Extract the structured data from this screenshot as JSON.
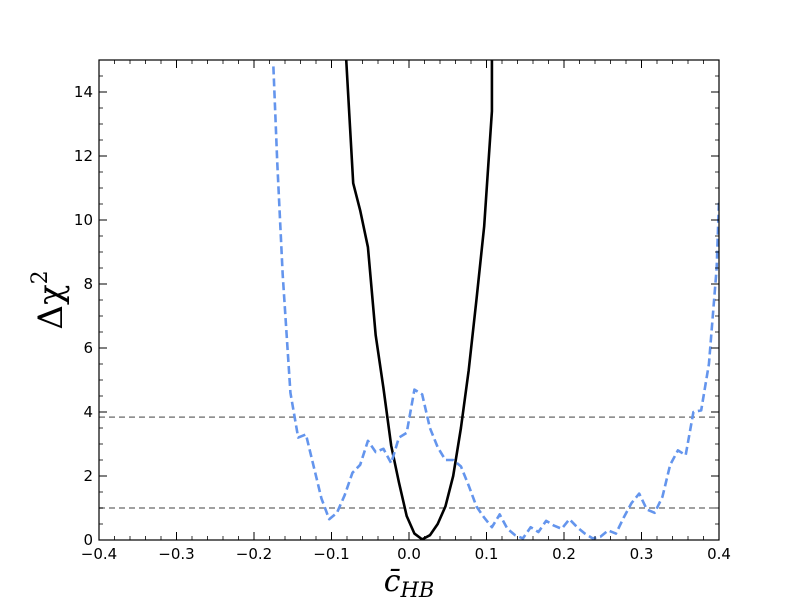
{
  "chart_data": {
    "type": "line",
    "xlabel": "c̄",
    "xlabel_sub": "HB",
    "ylabel": "Δχ",
    "ylabel_sup": "2",
    "xlim": [
      -0.4,
      0.4
    ],
    "ylim": [
      0,
      15
    ],
    "xticks": [
      -0.4,
      -0.3,
      -0.2,
      -0.1,
      0.0,
      0.1,
      0.2,
      0.3,
      0.4
    ],
    "xtick_labels": [
      "−0.4",
      "−0.3",
      "−0.2",
      "−0.1",
      "0.0",
      "0.1",
      "0.2",
      "0.3",
      "0.4"
    ],
    "yticks": [
      0,
      2,
      4,
      6,
      8,
      10,
      12,
      14
    ],
    "ytick_labels": [
      "0",
      "2",
      "4",
      "6",
      "8",
      "10",
      "12",
      "14"
    ],
    "grid": false,
    "reference_lines": [
      3.84,
      1.0
    ],
    "reference_color": "#808080",
    "series": [
      {
        "style": "solid",
        "color": "#000000",
        "x": [
          -0.081,
          -0.072,
          -0.063,
          -0.053,
          -0.043,
          -0.033,
          -0.023,
          -0.013,
          -0.003,
          0.007,
          0.017,
          0.027,
          0.037,
          0.047,
          0.057,
          0.067,
          0.077,
          0.087,
          0.097,
          0.107,
          0.107
        ],
        "y": [
          15.0,
          11.15,
          10.3,
          9.15,
          6.4,
          4.75,
          2.95,
          1.8,
          0.75,
          0.2,
          0.02,
          0.15,
          0.5,
          1.05,
          2.0,
          3.5,
          5.3,
          7.5,
          9.8,
          13.4,
          15.0
        ]
      },
      {
        "style": "dashed",
        "color": "#6495ED",
        "x": [
          -0.175,
          -0.17,
          -0.163,
          -0.153,
          -0.143,
          -0.133,
          -0.123,
          -0.113,
          -0.103,
          -0.093,
          -0.083,
          -0.073,
          -0.063,
          -0.053,
          -0.043,
          -0.033,
          -0.023,
          -0.013,
          -0.003,
          0.007,
          0.017,
          0.027,
          0.037,
          0.047,
          0.057,
          0.067,
          0.077,
          0.087,
          0.097,
          0.107,
          0.117,
          0.127,
          0.137,
          0.147,
          0.157,
          0.167,
          0.177,
          0.187,
          0.197,
          0.207,
          0.217,
          0.227,
          0.237,
          0.247,
          0.257,
          0.267,
          0.277,
          0.287,
          0.297,
          0.307,
          0.317,
          0.327,
          0.337,
          0.347,
          0.357,
          0.367,
          0.377,
          0.387,
          0.397,
          0.4
        ],
        "y": [
          14.8,
          11.8,
          8.3,
          4.6,
          3.2,
          3.3,
          2.3,
          1.3,
          0.65,
          0.85,
          1.4,
          2.1,
          2.35,
          3.1,
          2.75,
          2.85,
          2.4,
          3.2,
          3.35,
          4.7,
          4.55,
          3.5,
          2.9,
          2.5,
          2.5,
          2.3,
          1.7,
          1.05,
          0.7,
          0.4,
          0.8,
          0.35,
          0.15,
          0.05,
          0.4,
          0.25,
          0.6,
          0.45,
          0.35,
          0.65,
          0.4,
          0.2,
          0.05,
          0.1,
          0.3,
          0.2,
          0.7,
          1.15,
          1.45,
          0.95,
          0.85,
          1.35,
          2.35,
          2.8,
          2.65,
          4.0,
          4.05,
          5.5,
          8.5,
          10.6
        ]
      }
    ]
  }
}
